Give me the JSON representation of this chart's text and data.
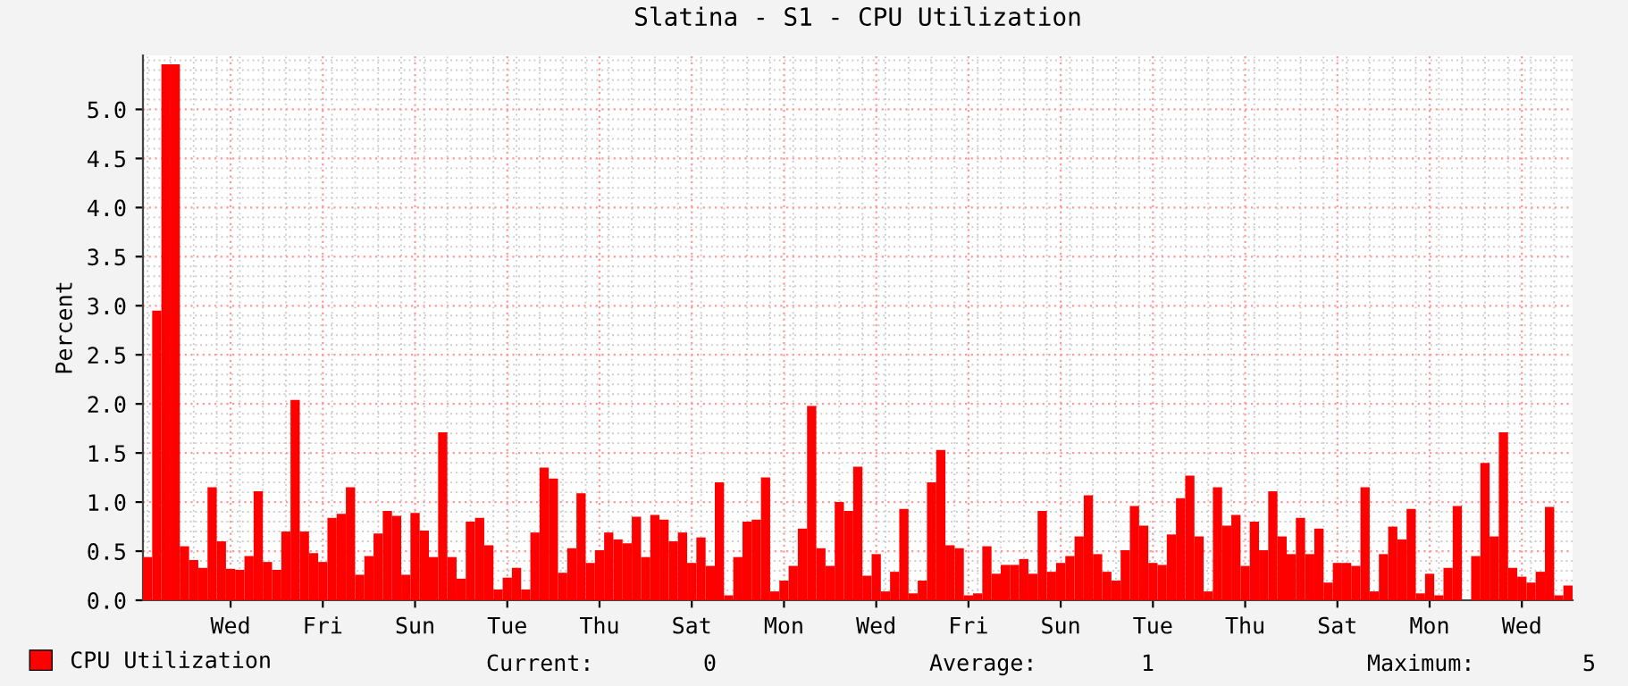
{
  "chart_data": {
    "type": "bar",
    "title": "Slatina - S1 - CPU Utilization",
    "ylabel": "Percent",
    "categories": [
      null,
      null,
      null,
      null,
      null,
      null,
      null,
      null,
      null,
      "Wed",
      null,
      null,
      null,
      null,
      null,
      null,
      null,
      null,
      null,
      "Fri",
      null,
      null,
      null,
      null,
      null,
      null,
      null,
      null,
      null,
      "Sun",
      null,
      null,
      null,
      null,
      null,
      null,
      null,
      null,
      null,
      "Tue",
      null,
      null,
      null,
      null,
      null,
      null,
      null,
      null,
      null,
      "Thu",
      null,
      null,
      null,
      null,
      null,
      null,
      null,
      null,
      null,
      "Sat",
      null,
      null,
      null,
      null,
      null,
      null,
      null,
      null,
      null,
      "Mon",
      null,
      null,
      null,
      null,
      null,
      null,
      null,
      null,
      null,
      "Wed",
      null,
      null,
      null,
      null,
      null,
      null,
      null,
      null,
      null,
      "Fri",
      null,
      null,
      null,
      null,
      null,
      null,
      null,
      null,
      null,
      "Sun",
      null,
      null,
      null,
      null,
      null,
      null,
      null,
      null,
      null,
      "Tue",
      null,
      null,
      null,
      null,
      null,
      null,
      null,
      null,
      null,
      "Thu",
      null,
      null,
      null,
      null,
      null,
      null,
      null,
      null,
      null,
      "Sat",
      null,
      null,
      null,
      null,
      null,
      null,
      null,
      null,
      null,
      "Mon",
      null,
      null,
      null,
      null,
      null,
      null,
      null,
      null,
      null,
      "Wed",
      null,
      null,
      null,
      null,
      null
    ],
    "series": [
      {
        "name": "CPU Utilization",
        "color": "#ff0000",
        "values": [
          0.44,
          2.95,
          5.46,
          5.46,
          0.55,
          0.41,
          0.33,
          1.15,
          0.6,
          0.32,
          0.31,
          0.45,
          1.11,
          0.39,
          0.31,
          0.7,
          2.04,
          0.7,
          0.48,
          0.39,
          0.84,
          0.88,
          1.15,
          0.26,
          0.45,
          0.68,
          0.91,
          0.86,
          0.26,
          0.89,
          0.71,
          0.44,
          1.71,
          0.44,
          0.22,
          0.8,
          0.84,
          0.56,
          0.11,
          0.23,
          0.33,
          0.11,
          0.69,
          1.35,
          1.24,
          0.28,
          0.53,
          1.09,
          0.38,
          0.51,
          0.69,
          0.62,
          0.58,
          0.85,
          0.44,
          0.87,
          0.82,
          0.6,
          0.69,
          0.38,
          0.64,
          0.35,
          1.2,
          0.05,
          0.44,
          0.8,
          0.82,
          1.25,
          0.09,
          0.2,
          0.35,
          0.73,
          1.98,
          0.53,
          0.35,
          1.0,
          0.91,
          1.36,
          0.25,
          0.47,
          0.09,
          0.29,
          0.93,
          0.07,
          0.2,
          1.2,
          1.53,
          0.56,
          0.53,
          0.05,
          0.07,
          0.55,
          0.27,
          0.36,
          0.36,
          0.42,
          0.27,
          0.91,
          0.29,
          0.38,
          0.45,
          0.65,
          1.07,
          0.47,
          0.29,
          0.2,
          0.51,
          0.96,
          0.76,
          0.38,
          0.36,
          0.67,
          1.04,
          1.27,
          0.65,
          0.09,
          1.15,
          0.76,
          0.87,
          0.35,
          0.8,
          0.51,
          1.11,
          0.65,
          0.47,
          0.84,
          0.47,
          0.73,
          0.18,
          0.38,
          0.38,
          0.35,
          1.15,
          0.09,
          0.47,
          0.75,
          0.62,
          0.93,
          0.07,
          0.27,
          0.05,
          0.33,
          0.96,
          0,
          0.45,
          1.4,
          0.65,
          1.71,
          0.33,
          0.24,
          0.18,
          0.29,
          0.95,
          0.05,
          0.15
        ]
      }
    ],
    "ylim": [
      0,
      5.55
    ],
    "yticks": [
      {
        "value": 0,
        "label": "0.0"
      },
      {
        "value": 0.5,
        "label": "0.5"
      },
      {
        "value": 1,
        "label": "1.0"
      },
      {
        "value": 1.5,
        "label": "1.5"
      },
      {
        "value": 2,
        "label": "2.0"
      },
      {
        "value": 2.5,
        "label": "2.5"
      },
      {
        "value": 3,
        "label": "3.0"
      },
      {
        "value": 3.5,
        "label": "3.5"
      },
      {
        "value": 4,
        "label": "4.0"
      },
      {
        "value": 4.5,
        "label": "4.5"
      },
      {
        "value": 5,
        "label": "5.0"
      }
    ],
    "grid": true,
    "legend": "bottom left",
    "annotations": [
      "Current:",
      "0",
      "Average:",
      "1",
      "Maximum:",
      "5"
    ]
  }
}
